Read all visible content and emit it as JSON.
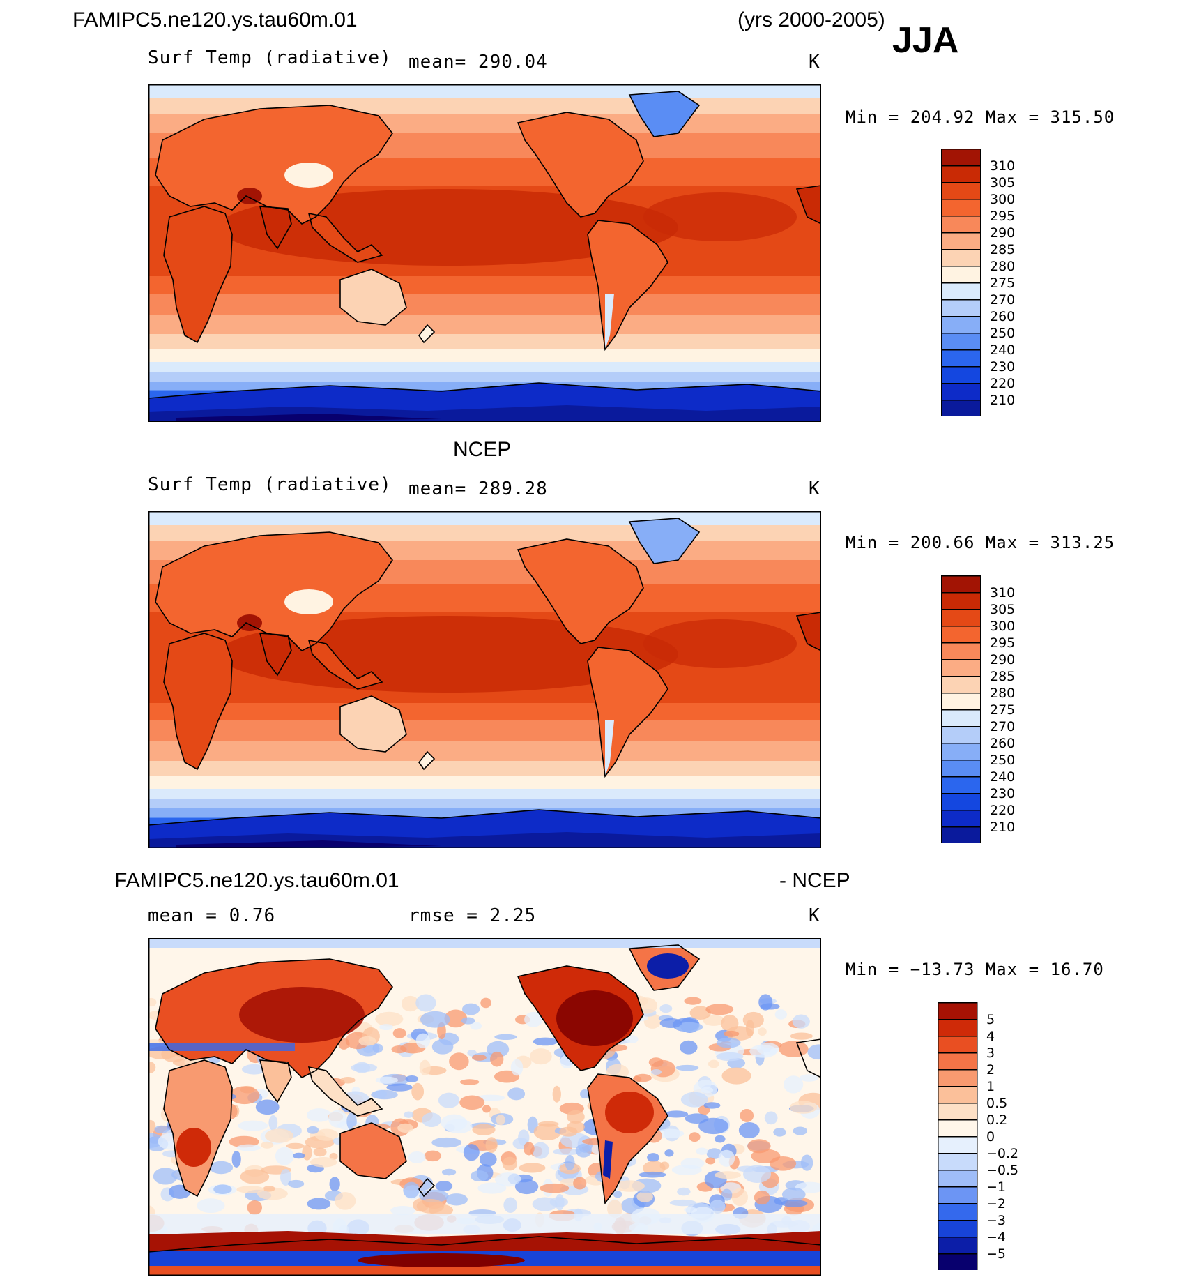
{
  "header": {
    "case_name": "FAMIPC5.ne120.ys.tau60m.01",
    "years": "(yrs 2000-2005)",
    "season": "JJA"
  },
  "colors": {
    "temp_scale": [
      "#08006e",
      "#0a1a9c",
      "#0d2bc8",
      "#1447e0",
      "#2b66ee",
      "#5a8df4",
      "#87aef7",
      "#b4cdf9",
      "#daeafc",
      "#fff3e2",
      "#fcd3b4",
      "#fbac84",
      "#f8885a",
      "#f3652f",
      "#e44916",
      "#c92a05",
      "#a21404",
      "#7f0000"
    ],
    "diff_scale": [
      "#08006e",
      "#0c1ea8",
      "#1844d8",
      "#3469ed",
      "#6c95f4",
      "#9fbdf8",
      "#c8dbfb",
      "#e6f0fd",
      "#fff6ea",
      "#fde0c6",
      "#fbc09a",
      "#f89a70",
      "#f47447",
      "#e94f22",
      "#cf2a08",
      "#a61204",
      "#7f0000"
    ]
  },
  "panels": [
    {
      "id": "model",
      "variable": "Surf Temp (radiative)",
      "mean_text": "mean=  290.04",
      "units": "K",
      "min_max_text": "Min  =  204.92  Max  =  315.50",
      "scale": "temp",
      "colorbar_labels": [
        "310",
        "305",
        "300",
        "295",
        "290",
        "285",
        "280",
        "275",
        "270",
        "260",
        "250",
        "240",
        "230",
        "220",
        "210"
      ]
    },
    {
      "id": "obs",
      "title": "NCEP",
      "variable": "Surf Temp (radiative)",
      "mean_text": "mean=  289.28",
      "units": "K",
      "min_max_text": "Min  =  200.66  Max  =  313.25",
      "scale": "temp",
      "colorbar_labels": [
        "310",
        "305",
        "300",
        "295",
        "290",
        "285",
        "280",
        "275",
        "270",
        "260",
        "250",
        "240",
        "230",
        "220",
        "210"
      ]
    },
    {
      "id": "diff",
      "title_left": "FAMIPC5.ne120.ys.tau60m.01",
      "title_right": "- NCEP",
      "mean_text": "mean  =     0.76",
      "rmse_text": "rmse  =     2.25",
      "units": "K",
      "min_max_text": "Min  =  −13.73  Max  =     16.70",
      "scale": "diff",
      "colorbar_labels": [
        "5",
        "4",
        "3",
        "2",
        "1",
        "0.5",
        "0.2",
        "0",
        "−0.2",
        "−0.5",
        "−1",
        "−2",
        "−3",
        "−4",
        "−5"
      ]
    }
  ]
}
